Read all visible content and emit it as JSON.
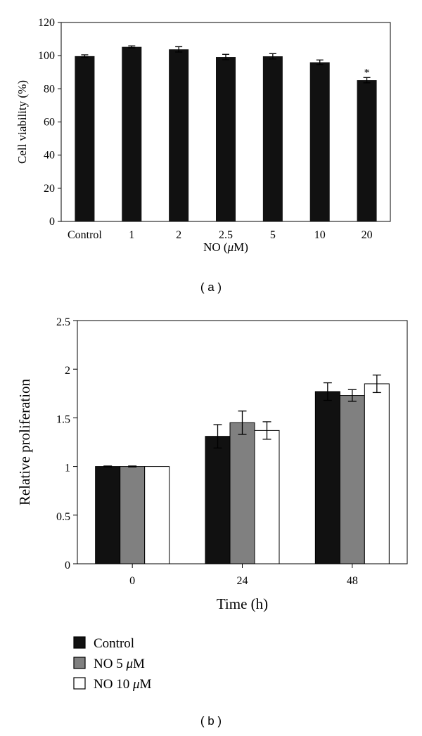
{
  "figure": {
    "panel_a_label": "( a )",
    "panel_b_label": "( b )"
  },
  "chart_data": [
    {
      "type": "bar",
      "panel": "a",
      "categories": [
        "Control",
        "1",
        "2",
        "2.5",
        "5",
        "10",
        "20"
      ],
      "values": [
        99.7,
        105.3,
        103.8,
        99.2,
        99.6,
        96.0,
        85.2
      ],
      "errors": [
        0.8,
        0.6,
        1.6,
        1.6,
        1.6,
        1.4,
        1.6
      ],
      "annotations": [
        {
          "category": "20",
          "text": "*"
        }
      ],
      "xlabel_prefix": "NO (",
      "xlabel_mu": "μ",
      "xlabel_suffix": "M)",
      "ylabel": "Cell viability (%)",
      "ylim": [
        0,
        120
      ],
      "yticks": [
        0,
        20,
        40,
        60,
        80,
        100,
        120
      ],
      "bar_color": "#111111",
      "grid": false
    },
    {
      "type": "bar",
      "panel": "b",
      "categories": [
        "0",
        "24",
        "48"
      ],
      "series": [
        {
          "name": "Control",
          "legend_prefix": "Control",
          "legend_mu": "",
          "legend_suffix": "",
          "color": "#111111",
          "values": [
            1.0,
            1.31,
            1.77
          ],
          "errors": [
            0.005,
            0.12,
            0.09
          ]
        },
        {
          "name": "NO 5 μM",
          "legend_prefix": "NO 5 ",
          "legend_mu": "μ",
          "legend_suffix": "M",
          "color": "#808080",
          "values": [
            1.0,
            1.45,
            1.73
          ],
          "errors": [
            0.005,
            0.12,
            0.06
          ]
        },
        {
          "name": "NO 10 μM",
          "legend_prefix": "NO 10 ",
          "legend_mu": "μ",
          "legend_suffix": "M",
          "color": "#ffffff",
          "values": [
            1.0,
            1.37,
            1.85
          ],
          "errors": [
            0.0,
            0.09,
            0.09
          ]
        }
      ],
      "xlabel": "Time (h)",
      "ylabel": "Relative proliferation",
      "ylim": [
        0,
        2.5
      ],
      "yticks": [
        "0",
        "0.5",
        "1",
        "1.5",
        "2",
        "2.5"
      ],
      "legend_position": "bottom-left",
      "grid": false
    }
  ]
}
